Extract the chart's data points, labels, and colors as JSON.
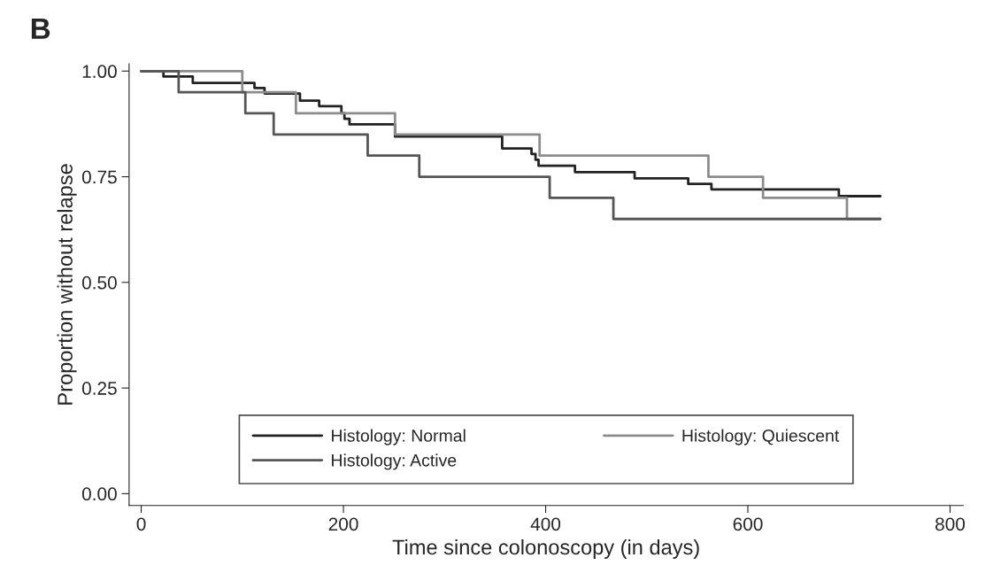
{
  "chart_data": {
    "type": "step",
    "xlabel": "Time since colonoscopy (in days)",
    "ylabel": "Proportion without relapse",
    "annotations": [
      "B"
    ],
    "series": [
      {
        "name": "Histology: Normal",
        "color": "#222222",
        "x": [
          0,
          22,
          51,
          112,
          122,
          157,
          176,
          198,
          201,
          206,
          251,
          357,
          386,
          390,
          393,
          429,
          488,
          541,
          564,
          690,
          731
        ],
        "values": [
          1.0,
          0.987,
          0.972,
          0.96,
          0.947,
          0.93,
          0.917,
          0.9,
          0.887,
          0.874,
          0.845,
          0.817,
          0.804,
          0.79,
          0.776,
          0.761,
          0.746,
          0.733,
          0.72,
          0.704,
          0.704
        ]
      },
      {
        "name": "Histology: Quiescent",
        "color": "#8c8c8c",
        "x": [
          0,
          100,
          153,
          251,
          394,
          561,
          615,
          698,
          731
        ],
        "values": [
          1.0,
          0.95,
          0.9,
          0.85,
          0.8,
          0.75,
          0.7,
          0.65,
          0.65
        ]
      },
      {
        "name": "Histology: Active",
        "color": "#555555",
        "x": [
          0,
          37,
          103,
          131,
          224,
          275,
          404,
          467,
          731
        ],
        "values": [
          1.0,
          0.95,
          0.9,
          0.85,
          0.8,
          0.75,
          0.7,
          0.65,
          0.65
        ]
      }
    ],
    "xlim": [
      -12,
      813
    ],
    "ylim": [
      -0.028,
      1.017
    ],
    "xticks": [
      0,
      200,
      400,
      600,
      800
    ],
    "yticks": [
      {
        "value": 0,
        "label": "0.00"
      },
      {
        "value": 0.25,
        "label": "0.25"
      },
      {
        "value": 0.5,
        "label": "0.50"
      },
      {
        "value": 0.75,
        "label": "0.75"
      },
      {
        "value": 1.0,
        "label": "1.00"
      }
    ],
    "grid": false,
    "legend": "bottom"
  }
}
